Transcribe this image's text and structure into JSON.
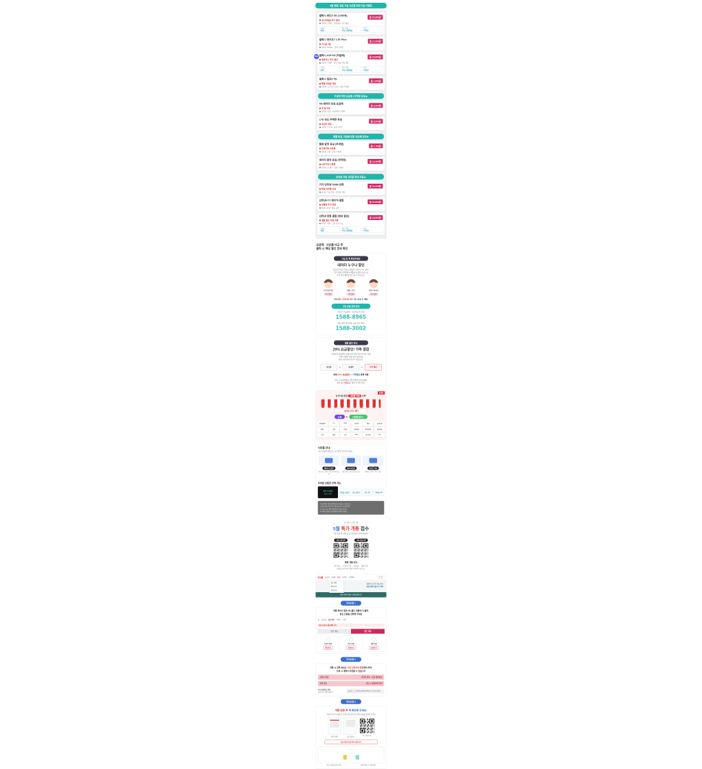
{
  "banner": {
    "label": "5월 한정! 유심 가입 사은품 최대 지급 이벤트"
  },
  "plans": {
    "chips": [
      {
        "t": "개통비",
        "v": "면제"
      },
      {
        "t": "배송/택배",
        "v": "무료 당일발송"
      },
      {
        "t": "약정",
        "v": "무약정"
      }
    ],
    "sections": [
      {
        "header": "",
        "cards": [
          {
            "title": "갤럭시 버디3 5G (128GB)",
            "badge": "월 25,850원",
            "red": "공시지원금 추가 할인",
            "gray": "데이터 무제한 · 통화/문자 기본 제공",
            "chips": true,
            "isNew": false
          },
          {
            "title": "갤럭시 와이드7 LTE Plus",
            "badge": "월 11,000원",
            "red": "기기값 0원",
            "gray": "데이터 15GB+ · 통화 무제한",
            "chips": false,
            "isNew": false
          },
          {
            "title": "갤럭시 A25 5G (자급제)",
            "badge": "월 25,800원",
            "red": "제휴카드 추가 할인",
            "gray": "데이터 무제한 · 재고 한정 당일 개통",
            "chips": true,
            "isNew": true
          },
          {
            "title": "갤럭시 점프3 5G",
            "badge": "월 1,000원",
            "red": "특별 지원금 적용",
            "gray": "데이터 11GB+일 2GB · 통화 무제한",
            "chips": false,
            "isNew": false
          }
        ]
      },
      {
        "header": "가성비 착한 요금제 | 무약정 유심 ▶",
        "cards": [
          {
            "title": "5G 데이터 안심 요금제",
            "badge": "월 9,900원",
            "red": "첫 달 무료",
            "gray": "데이터 6GB · 통화/문자 무제한",
            "chips": false,
            "isNew": false
          },
          {
            "title": "LTE 속도 무제한 유심",
            "badge": "월 5,500원",
            "red": "유심비 무료",
            "gray": "데이터 1.5GB · 통화 100분",
            "chips": false,
            "isNew": false
          }
        ]
      },
      {
        "header": "알뜰 유심, 자급제 단말 요금제 안내 ▶",
        "cards": [
          {
            "title": "통화 맘껏 유심 (무약정)",
            "badge": "월 7,700원",
            "red": "번호이동 사은품",
            "gray": "데이터 2GB · 통화 무제한",
            "chips": false,
            "isNew": false
          },
          {
            "title": "데이터 맘껏 유심 (무약정)",
            "badge": "월 14,300원",
            "red": "신규가입 사은품",
            "gray": "데이터 11GB+ · 통화 무제한",
            "chips": false,
            "isNew": false
          }
        ]
      },
      {
        "header": "인터넷 가입 사은품 최대 지원 ▶",
        "cards": [
          {
            "title": "기가 인터넷 500M 단독",
            "badge": "월 22,000원",
            "red": "현금 사은품 지급",
            "gray": "공유기 무료 임대 · 설치비 지원",
            "chips": false,
            "isNew": false
          },
          {
            "title": "인터넷+TV 베이직 결합",
            "badge": "월 30,800원",
            "red": "상품권 추가 증정",
            "gray": "채널 230개 · 셋톱 포함",
            "chips": false,
            "isNew": false
          },
          {
            "title": "인터넷 전화 결합 (최대 할인)",
            "badge": "월 16,500원",
            "red": "결합 할인 자동 적용",
            "gray": "위약금 지원 · 당일 설치 가능",
            "chips": true,
            "isNew": false
          }
        ]
      }
    ],
    "new_badge": "NEW"
  },
  "intro": {
    "line1": "요금제 · 사은품 비교 후",
    "line2": "클릭 시 해당 할인 정보 확인"
  },
  "discount": {
    "pill": "가입 전 꼭 확인하세요",
    "title": "데이터 누구나 할인",
    "desc1": "통신비 부담은 줄이고 혜택은 더한 누구나 할인!",
    "desc2": "가입 유형과 연령에 관계없이 동일한 조건으로",
    "desc3": "추가 할인 혜택을 받으실 수 있습니다.",
    "avatars": [
      {
        "label": "만 65세 이상",
        "pill": "추가 할인"
      },
      {
        "label": "일반 / 주부",
        "pill": "기본 할인"
      },
      {
        "label": "학생 / 청소년",
        "pill": "추가 할인"
      }
    ],
    "note_pre": "신규가입 · ",
    "note_red": "번호이동",
    "note_post": " 모두 가능 (상담 후 개통)",
    "call_pill": "가입 상담 전화 안내",
    "call1_label": "가입 전 가능여부 · 사은품 문의 전화",
    "call1_number": "1588-8965",
    "call2_label": "개통 관련 (셀프개통 도움 전담 센터)",
    "call2_number": "1588-3002"
  },
  "family": {
    "pill": "결합 할인 안내",
    "title": "20% 요금할인! 가족 결합",
    "desc1": "인터넷과 휴대폰을 함께 쓰면 결합 할인이 자동 적용!",
    "desc2": "가족 구성원 수에 따라 통신비를",
    "desc3": "최대 20%까지 아낄 수 있습니다.",
    "diagram": {
      "a": "인터넷",
      "b": "휴대폰",
      "c": "가족 결합",
      "plus": "+",
      "equals": "="
    },
    "hl_pre": "최대 ",
    "hl_red": "20% 요금할인",
    "hl_mid": " + ",
    "hl_blue": "가족결합",
    "hl_post": " 중복 적용",
    "foot1": "가입 시 상담원에게 가족 결합을 요청하세요.",
    "foot2_pre": "기존 회선 ",
    "foot2_red": "위약금",
    "foot2_post": "은 해지 전 확인 필수!"
  },
  "market": {
    "corner_badge": "진행중",
    "top_pre": "신규가입 한정 ",
    "top_pill": "사은품 마켓",
    "top_post": " 오픈!",
    "sign": "사은품 고르는 재미",
    "pill_left": "신청",
    "arrow": "▶",
    "pill_right": "사은품 받기 >",
    "brands": [
      "네이버페이",
      "CU",
      "GS25",
      "스타벅스",
      "배민",
      "올리브영",
      "이마트",
      "쿠팡",
      "다이소",
      "롯데리아",
      "파리바게뜨",
      "메가커피",
      "투썸",
      "베라",
      "교촌",
      "BHC",
      "맘스터치",
      "CGV"
    ]
  },
  "gifts": {
    "heading": "사은품 안내",
    "sub": "가입 유형별 제공되는 사은품을 확인해 주세요",
    "items": [
      {
        "pill": "제휴카드 할인",
        "cap": "제휴카드 개통 시 통신비 최대 할인"
      },
      {
        "pill": "현금 사은품",
        "cap": "개통 완료 다음 달 현금 지급"
      },
      {
        "pill": "포인트 지급",
        "cap": "멤버십 포인트 즉시 적립"
      }
    ],
    "heading2": "모바일 상품권 선택 가능",
    "blackcard_l1": "VIP CARD",
    "blackcard_l2": "모바일 금액권",
    "gift_chips": [
      "백화점 상품권",
      "주유 상품권",
      "외식 쿠폰",
      "편의점 쿠폰"
    ],
    "fineprint": [
      "※ 사은품은 개통 유형에 따라 상이할 수 있습니다.",
      "※ 번호이동/신규가입 기준이며 일부 요금제 제외.",
      "※ 지급 시점: 개통 익월 말일 이내 순차 지급.",
      "※ 자세한 내용은 상담원에게 문의해 주세요."
    ]
  },
  "qrsec": {
    "top": "모바일로 간편하게",
    "title_blue": "5월 ",
    "title_red": "특가 개통",
    "title_dark": " 접수",
    "sub": "QR 스캔 후 간편 상담 신청까지 1분이면 충분!",
    "qrs": [
      {
        "label": "상담 신청 QR"
      },
      {
        "label": "카톡 상담 QR"
      }
    ],
    "foot_title": "빠른 개통 안내",
    "foot1": "QR 접속 → 신청서 작성 → 해피콜 → 개통 완료",
    "foot2": "영업일 기준 평균 30분 내 연락드립니다."
  },
  "shot1": {
    "logo": "공식몰",
    "menu": [
      "요금제",
      "휴대폰",
      "유심",
      "사은품",
      "고객센터"
    ],
    "dropdown": [
      "셀프개통",
      "배송조회",
      "상담신청"
    ],
    "login": "로그인",
    "body1": "홈페이지 상단 메뉴에서",
    "body2": "[셀프개통] 클릭 후 진행",
    "footer": "개통 관련 문의는 채팅상담으로"
  },
  "notices": [
    "주의사항 1",
    "주의사항 2",
    "주의사항 3"
  ],
  "shot2": {
    "title1": "개통 페이지 접속 후 [셀프 개통하기] 클릭,",
    "title2": "본인 인증을 진행해 주세요",
    "nav": [
      "홈",
      "요금제",
      "셀프개통",
      "이벤트",
      "문의"
    ],
    "banner": "유심 도착 후 셀프개통 가능",
    "tabs": [
      {
        "label": "유심 개통",
        "active": false
      },
      {
        "label": "셀프 개통",
        "active": true
      }
    ],
    "cols": [
      {
        "label": "신청서 확인",
        "btn": "확인하기"
      },
      {
        "label": "본인 인증",
        "btn": "인증하기"
      },
      {
        "label": "개통 완료",
        "btn": "신청하기"
      }
    ]
  },
  "card3": {
    "title1_pre": "개통 시 입력 정보는 ",
    "title1_red": "가입 신청서와 동일",
    "title1_post": "해야 하며,",
    "title2": "오류 시 개통이 지연될 수 있습니다",
    "rows": [
      {
        "k": "신청서 정보",
        "v": "가입자 명의 · 유심 일련번호"
      },
      {
        "k": "입력 정보",
        "v": "반드시 동일하게 입력"
      }
    ],
    "left1": "유심 일련번호 확인",
    "left2": "유심 카드 뒷면 13자리",
    "note": "불일치 시 고객센터(1588-8965)로 연락해 주세요."
  },
  "card4": {
    "title_red": "개통 완료 후 ",
    "title_blue": "꼭 확인해 주세요!",
    "sub": "아래 안내 이미지를 참고하여 유심 장착 및 개통 상태를 확인해 주세요",
    "thumb1": "개통 안내문",
    "thumb2": "유심 설명서",
    "thumb3": "설치 영상 QR",
    "redbox": "유심 장착 안내 영상 바로가기",
    "box1": "유심 트레이에 유심 장착",
    "box2": "전원 재부팅 후 개통 확인"
  }
}
